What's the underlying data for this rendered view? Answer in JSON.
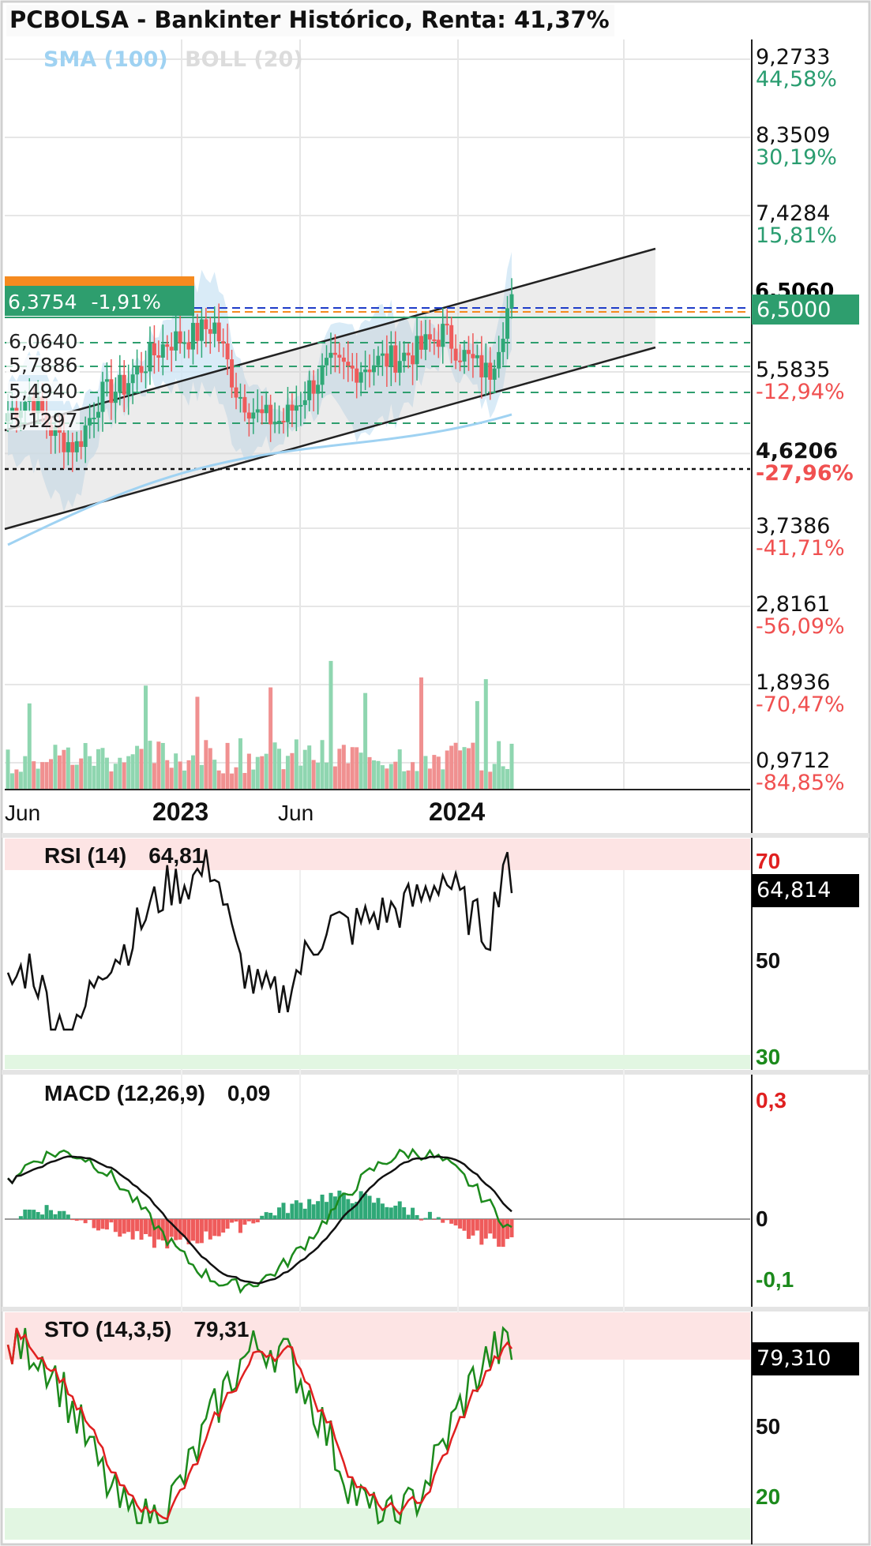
{
  "title": "PCBOLSA - Bankinter Histórico, Renta: 41,37%",
  "legend": {
    "sma": "SMA (100)",
    "boll": "BOLL (20)"
  },
  "colors": {
    "up": "#2fa877",
    "down": "#ef5b5b",
    "sma": "#9fd2f2",
    "boll_fill": "#cfe6f5",
    "grid": "#e6e6e6"
  },
  "price_axis": [
    {
      "price": "9,2733",
      "pct": "44,58%",
      "sign": "pos"
    },
    {
      "price": "8,3509",
      "pct": "30,19%",
      "sign": "pos"
    },
    {
      "price": "7,4284",
      "pct": "15,81%",
      "sign": "pos"
    },
    {
      "price": "5,5835",
      "pct": "-12,94%",
      "sign": "neg"
    },
    {
      "price": "4,6206",
      "pct": "-27,96%",
      "sign": "neg",
      "bold": true
    },
    {
      "price": "3,7386",
      "pct": "-41,71%",
      "sign": "neg"
    },
    {
      "price": "2,8161",
      "pct": "-56,09%",
      "sign": "neg"
    },
    {
      "price": "1,8936",
      "pct": "-70,47%",
      "sign": "neg"
    },
    {
      "price": "0,9712",
      "pct": "-84,85%",
      "sign": "neg"
    }
  ],
  "current_price_tag": "6,5000",
  "obscured_tag": "6,5060",
  "top_tag": {
    "price": "6,3754",
    "pct": "-1,91%"
  },
  "levels": [
    "6,0640",
    "5,7886",
    "5,4940",
    "5,1297"
  ],
  "x_axis": [
    {
      "label": "Jun",
      "major": false
    },
    {
      "label": "2023",
      "major": true
    },
    {
      "label": "Jun",
      "major": false
    },
    {
      "label": "2024",
      "major": true
    }
  ],
  "rsi": {
    "name": "RSI (14)",
    "value": "64,81",
    "tag": "64,814",
    "levels": [
      "70",
      "50",
      "30"
    ]
  },
  "macd": {
    "name": "MACD (12,26,9)",
    "value": "0,09",
    "levels": [
      "0,3",
      "0",
      "-0,1"
    ]
  },
  "sto": {
    "name": "STO (14,3,5)",
    "value": "79,31",
    "tag": "79,310",
    "levels": [
      "50",
      "20"
    ]
  },
  "chart_data": [
    {
      "type": "candlestick",
      "title": "PCBOLSA - Bankinter Histórico, Renta: 41,37%",
      "period": "2022-05 to 2024-03",
      "series": [
        {
          "name": "SMA (100)"
        },
        {
          "name": "BOLL (20)"
        }
      ],
      "close_path": [
        [
          "2022-05",
          5.1
        ],
        [
          "2022-06",
          5.3
        ],
        [
          "2022-07",
          4.85
        ],
        [
          "2022-08",
          4.7
        ],
        [
          "2022-09",
          5.3
        ],
        [
          "2022-10",
          5.4
        ],
        [
          "2022-11",
          5.7
        ],
        [
          "2022-12",
          5.95
        ],
        [
          "2023-01",
          6.0
        ],
        [
          "2023-02",
          6.15
        ],
        [
          "2023-03",
          5.35
        ],
        [
          "2023-04",
          5.05
        ],
        [
          "2023-05",
          5.0
        ],
        [
          "2023-06",
          5.35
        ],
        [
          "2023-07",
          5.65
        ],
        [
          "2023-08",
          5.6
        ],
        [
          "2023-09",
          5.7
        ],
        [
          "2023-10",
          5.75
        ],
        [
          "2023-11",
          5.85
        ],
        [
          "2023-12",
          6.05
        ],
        [
          "2024-01",
          5.75
        ],
        [
          "2024-02",
          5.55
        ],
        [
          "2024-03",
          6.5
        ]
      ],
      "ylim": [
        0.9712,
        9.2733
      ],
      "last_price": 6.5,
      "reference_price": 4.6206
    },
    {
      "type": "line",
      "name": "RSI (14)",
      "last": 64.81,
      "ylim": [
        30,
        70
      ]
    },
    {
      "type": "bar+line",
      "name": "MACD (12,26,9)",
      "last": 0.09,
      "ylim": [
        -0.1,
        0.3
      ]
    },
    {
      "type": "line",
      "name": "STO (14,3,5)",
      "last": 79.31,
      "ylim": [
        20,
        80
      ]
    }
  ]
}
